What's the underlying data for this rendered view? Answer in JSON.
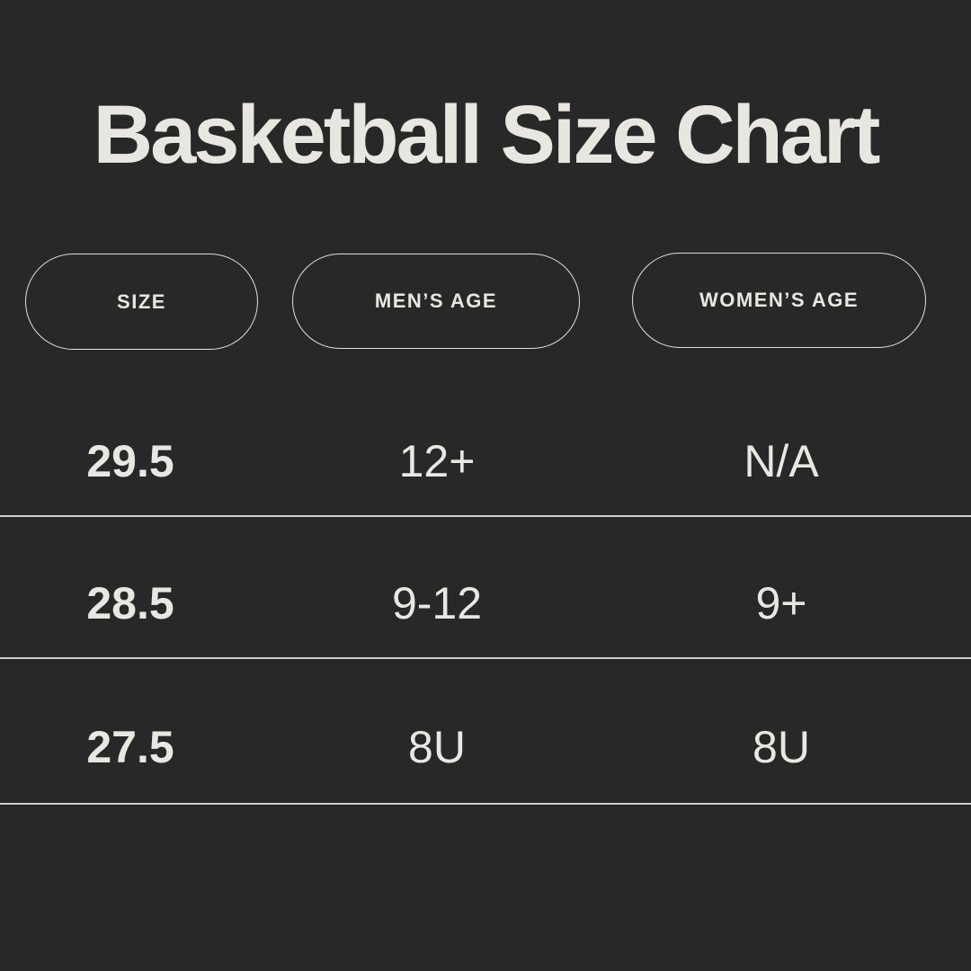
{
  "title": "Basketball Size Chart",
  "colors": {
    "background": "#292828",
    "text": "#e9e7e1",
    "pill_border": "#e3e1db",
    "divider": "#cfcdc7"
  },
  "chart_data": {
    "type": "table",
    "title": "Basketball Size Chart",
    "columns": [
      "SIZE",
      "MEN’S AGE",
      "WOMEN’S AGE"
    ],
    "rows": [
      [
        "29.5",
        "12+",
        "N/A"
      ],
      [
        "28.5",
        "9-12",
        "9+"
      ],
      [
        "27.5",
        "8U",
        "8U"
      ]
    ]
  }
}
